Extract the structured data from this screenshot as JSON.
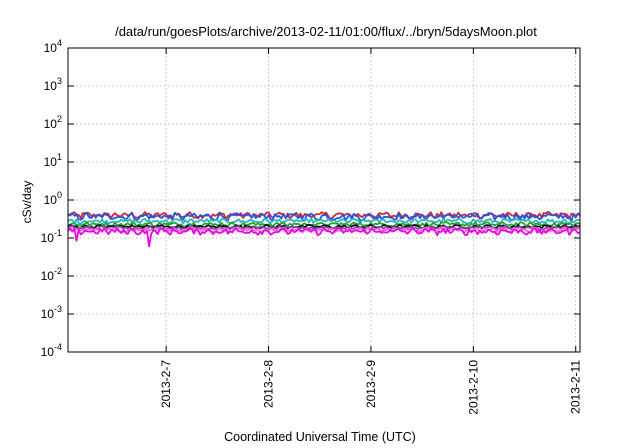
{
  "chart_data": {
    "type": "line",
    "title": "/data/run/goesPlots/archive/2013-02-11/01:00/flux/../bryn/5daysMoon.plot",
    "xlabel": "Coordinated Universal Time (UTC)",
    "ylabel": "cSv/day",
    "yscale": "log",
    "ylim": [
      0.0001,
      10000
    ],
    "xlim": [
      "2013-02-06 01:00",
      "2013-02-11 01:00"
    ],
    "grid": true,
    "y_ticks": [
      {
        "base": "10",
        "exp": "-4",
        "value": 0.0001
      },
      {
        "base": "10",
        "exp": "-3",
        "value": 0.001
      },
      {
        "base": "10",
        "exp": "-2",
        "value": 0.01
      },
      {
        "base": "10",
        "exp": "-1",
        "value": 0.1
      },
      {
        "base": "10",
        "exp": "0",
        "value": 1
      },
      {
        "base": "10",
        "exp": "1",
        "value": 10
      },
      {
        "base": "10",
        "exp": "2",
        "value": 100
      },
      {
        "base": "10",
        "exp": "3",
        "value": 1000
      },
      {
        "base": "10",
        "exp": "4",
        "value": 10000
      }
    ],
    "x_ticks": [
      {
        "label": "2013-2-7",
        "value": "2013-02-07 00:00"
      },
      {
        "label": "2013-2-8",
        "value": "2013-02-08 00:00"
      },
      {
        "label": "2013-2-9",
        "value": "2013-02-09 00:00"
      },
      {
        "label": "2013-2-10",
        "value": "2013-02-10 00:00"
      },
      {
        "label": "2013-2-11",
        "value": "2013-02-11 00:00"
      }
    ],
    "series": [
      {
        "color": "#d62728",
        "base": 0.4,
        "noise": 0.07
      },
      {
        "color": "#2255ee",
        "base": 0.37,
        "noise": 0.07
      },
      {
        "color": "#22bbbb",
        "base": 0.28,
        "noise": 0.035
      },
      {
        "color": "#2ca02c",
        "base": 0.23,
        "noise": 0.025
      },
      {
        "color": "#111111",
        "base": 0.2,
        "noise": 0.018
      },
      {
        "color": "#7a4fb0",
        "base": 0.185,
        "noise": 0.016
      },
      {
        "color": "#ff66cc",
        "base": 0.165,
        "noise": 0.02
      },
      {
        "color": "#ee00ee",
        "base": 0.15,
        "noise": 0.025,
        "dips": [
          [
            "2013-02-06 03:00",
            0.085
          ],
          [
            "2013-02-06 20:00",
            0.06
          ]
        ]
      }
    ]
  }
}
